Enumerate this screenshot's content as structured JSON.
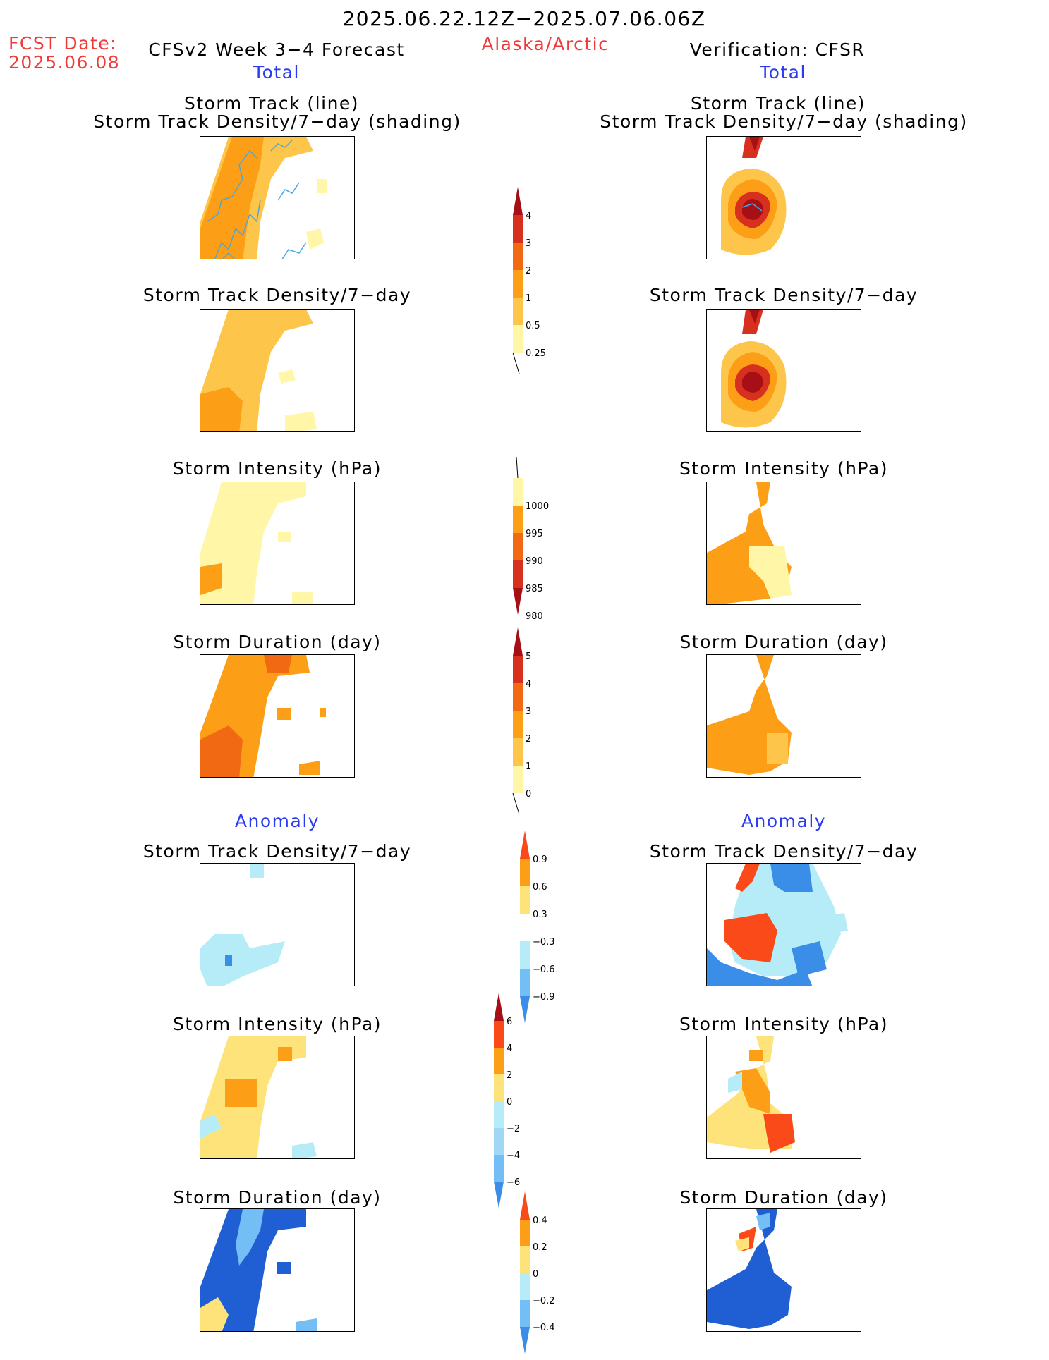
{
  "header": {
    "date_range": "2025.06.22.12Z−2025.07.06.06Z",
    "fcst_label": "FCST Date:",
    "fcst_date": "2025.06.08",
    "forecast_title": "CFSv2 Week 3−4 Forecast",
    "region": "Alaska/Arctic",
    "verification": "Verification: CFSR",
    "total_left": "Total",
    "total_right": "Total",
    "anomaly_left": "Anomaly",
    "anomaly_right": "Anomaly"
  },
  "panels": {
    "track_line": "Storm Track (line)",
    "track_shading": "Storm Track Density/7−day (shading)",
    "density": "Storm Track Density/7−day",
    "intensity": "Storm Intensity (hPa)",
    "duration": "Storm Duration (day)"
  },
  "colorbars": {
    "density_total": {
      "labels": [
        "4",
        "3",
        "2",
        "1",
        "0.5",
        "0.25"
      ],
      "colors": [
        "#a50f15",
        "#d7301f",
        "#f16913",
        "#fd9e17",
        "#fdc54a",
        "#fff6a8"
      ]
    },
    "intensity_total": {
      "labels": [
        "1000",
        "995",
        "990",
        "985",
        "980"
      ],
      "colors": [
        "#fff6a8",
        "#fd9e17",
        "#f16913",
        "#d7301f",
        "#a50f15"
      ]
    },
    "duration_total": {
      "labels": [
        "5",
        "4",
        "3",
        "2",
        "1",
        "0"
      ],
      "colors": [
        "#a50f15",
        "#d7301f",
        "#f16913",
        "#fd9e17",
        "#fdc54a",
        "#fff6a8"
      ]
    },
    "density_anom": {
      "labels": [
        "0.9",
        "0.6",
        "0.3",
        "−0.3",
        "−0.6",
        "−0.9"
      ],
      "colors": [
        "#fb4a1a",
        "#fd9e17",
        "#fde37a",
        "#ffffff",
        "#b5ecf7",
        "#73bff5",
        "#3b8ee8"
      ]
    },
    "intensity_anom": {
      "labels": [
        "6",
        "4",
        "2",
        "0",
        "−2",
        "−4",
        "−6"
      ],
      "colors": [
        "#a50f15",
        "#fb4a1a",
        "#fd9e17",
        "#fde37a",
        "#b5ecf7",
        "#9fd7f5",
        "#73bff5",
        "#3b8ee8"
      ]
    },
    "duration_anom": {
      "labels": [
        "0.4",
        "0.2",
        "0",
        "−0.2",
        "−0.4"
      ],
      "colors": [
        "#fb4a1a",
        "#fd9e17",
        "#fde37a",
        "#b5ecf7",
        "#73bff5",
        "#3b8ee8"
      ]
    }
  },
  "colors": {
    "yellow": "#fff6a8",
    "ltorange": "#fdc54a",
    "orange": "#fd9e17",
    "dkorange": "#f16913",
    "red": "#d7301f",
    "dkred": "#a50f15",
    "ltblue": "#b5ecf7",
    "midblue": "#73bff5",
    "blue": "#3b8ee8",
    "dkblue": "#1f5fd3",
    "track": "#46a8e0"
  }
}
